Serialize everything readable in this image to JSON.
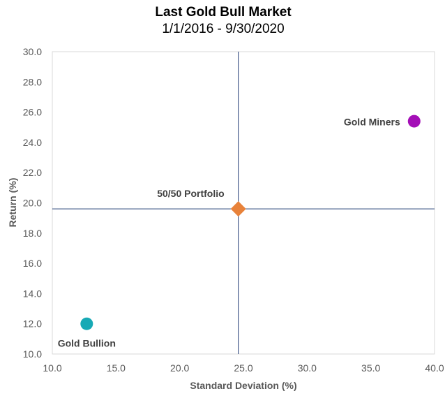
{
  "chart_data": {
    "type": "scatter",
    "title": "Last Gold Bull Market",
    "subtitle": "1/1/2016 - 9/30/2020",
    "xlabel": "Standard Deviation (%)",
    "ylabel": "Return (%)",
    "xlim": [
      10.0,
      40.0
    ],
    "ylim": [
      10.0,
      30.0
    ],
    "x_ticks": [
      "10.0",
      "15.0",
      "20.0",
      "25.0",
      "30.0",
      "35.0",
      "40.0"
    ],
    "y_ticks": [
      "10.0",
      "12.0",
      "14.0",
      "16.0",
      "18.0",
      "20.0",
      "22.0",
      "24.0",
      "26.0",
      "28.0",
      "30.0"
    ],
    "grid": false,
    "reference_lines": {
      "x": 24.6,
      "y": 19.6,
      "color": "#1f3b73"
    },
    "points": [
      {
        "label": "Gold Bullion",
        "x": 12.7,
        "y": 12.0,
        "marker": "circle",
        "color": "#17a9b5"
      },
      {
        "label": "50/50 Portfolio",
        "x": 24.6,
        "y": 19.6,
        "marker": "diamond",
        "color": "#e8823a"
      },
      {
        "label": "Gold Miners",
        "x": 38.4,
        "y": 25.4,
        "marker": "circle",
        "color": "#a40fb7"
      }
    ]
  }
}
